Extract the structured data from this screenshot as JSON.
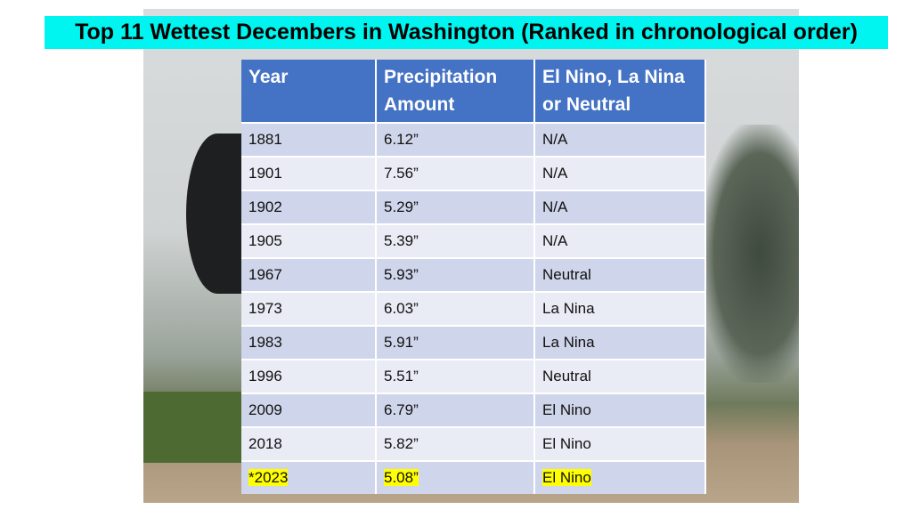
{
  "title": "Top 11 Wettest Decembers in Washington (Ranked in chronological order)",
  "table": {
    "headers": [
      "Year",
      "Precipitation Amount",
      "El Nino, La Nina or Neutral"
    ],
    "rows": [
      [
        "1881",
        "6.12”",
        "N/A"
      ],
      [
        "1901",
        "7.56”",
        "N/A"
      ],
      [
        "1902",
        "5.29”",
        "N/A"
      ],
      [
        "1905",
        "5.39”",
        "N/A"
      ],
      [
        "1967",
        "5.93”",
        "Neutral"
      ],
      [
        "1973",
        "6.03”",
        "La Nina"
      ],
      [
        "1983",
        "5.91”",
        "La Nina"
      ],
      [
        "1996",
        "5.51”",
        "Neutral"
      ],
      [
        "2009",
        "6.79”",
        "El Nino"
      ],
      [
        "2018",
        "5.82”",
        "El Nino"
      ],
      [
        "*2023",
        "5.08”",
        "El Nino"
      ]
    ],
    "highlighted_row": 10
  },
  "colors": {
    "title_bg": "#00f5f0",
    "header_bg": "#4472c4",
    "highlight": "#ffff00"
  }
}
